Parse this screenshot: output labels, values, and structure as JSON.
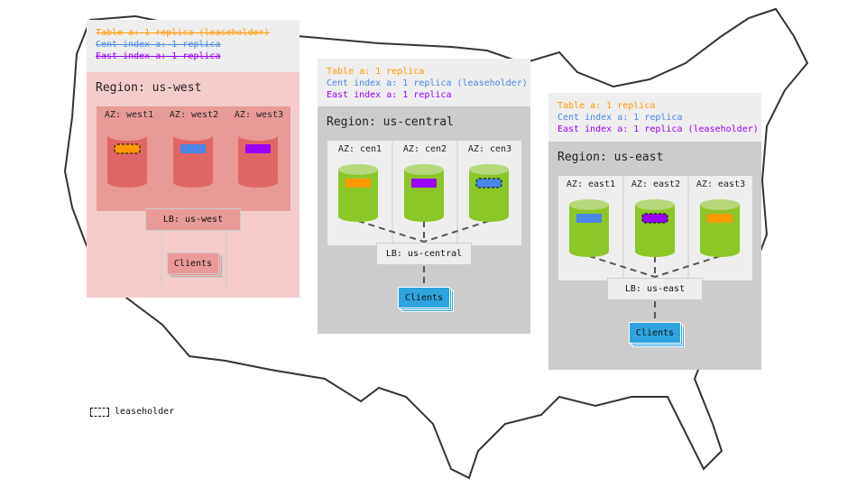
{
  "colors": {
    "table": "#ff9900",
    "cent_index": "#4a86e8",
    "east_index": "#9900ff",
    "west_fill": "#f4cccc",
    "west_az": "#ea9999",
    "west_cyl": "#e06666",
    "central_fill": "#cccccc",
    "green_cyl": "#8bc726",
    "clients_blue": "#2fa4e0"
  },
  "regions": [
    {
      "id": "us-west",
      "replicas": [
        "Table a: 1 replica (leaseholder)",
        "Cent index a: 1 replica",
        "East index a: 1 replica"
      ],
      "struck": true,
      "label": "Region: us-west",
      "azs": [
        "AZ: west1",
        "AZ: west2",
        "AZ: west3"
      ],
      "az_replicas": [
        "table",
        "cent_index",
        "east_index"
      ],
      "leaseholder_az": 0,
      "lb": "LB: us-west",
      "clients": "Clients",
      "theme": "red"
    },
    {
      "id": "us-central",
      "replicas": [
        "Table a: 1 replica",
        "Cent index a: 1 replica (leaseholder)",
        "East index a: 1 replica"
      ],
      "struck": false,
      "label": "Region: us-central",
      "azs": [
        "AZ: cen1",
        "AZ: cen2",
        "AZ: cen3"
      ],
      "az_replicas": [
        "table",
        "east_index",
        "cent_index"
      ],
      "leaseholder_az": 2,
      "lb": "LB: us-central",
      "clients": "Clients",
      "theme": "gray"
    },
    {
      "id": "us-east",
      "replicas": [
        "Table a: 1 replica",
        "Cent index a: 1 replica",
        "East index a: 1 replica (leaseholder)"
      ],
      "struck": false,
      "label": "Region: us-east",
      "azs": [
        "AZ: east1",
        "AZ: east2",
        "AZ: east3"
      ],
      "az_replicas": [
        "cent_index",
        "east_index",
        "table"
      ],
      "leaseholder_az": 1,
      "lb": "LB: us-east",
      "clients": "Clients",
      "theme": "gray"
    }
  ],
  "legend": {
    "label": "leaseholder"
  }
}
